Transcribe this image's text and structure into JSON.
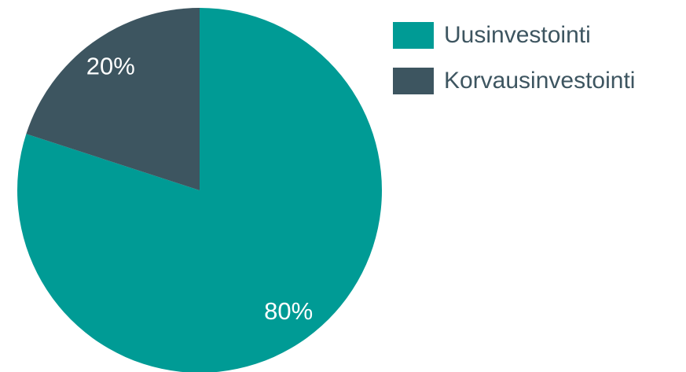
{
  "chart_data": {
    "type": "pie",
    "categories": [
      "Uusinvestointi",
      "Korvausinvestointi"
    ],
    "values": [
      80,
      20
    ],
    "value_labels": [
      "80%",
      "20%"
    ],
    "colors": [
      "#009b95",
      "#3d5560"
    ],
    "legend": "right"
  }
}
